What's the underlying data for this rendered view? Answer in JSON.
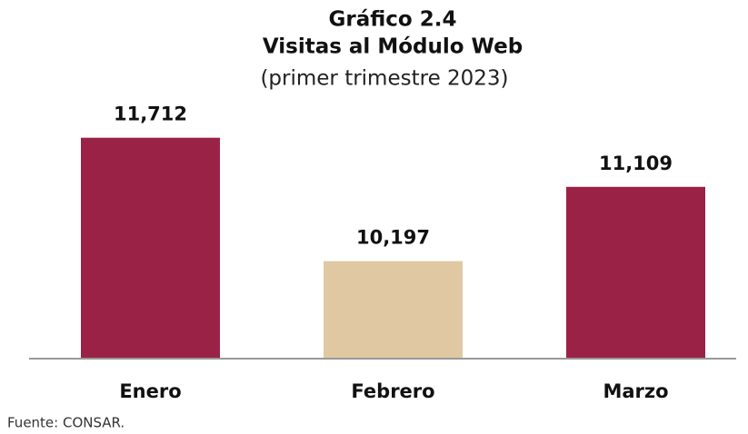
{
  "chart_data": {
    "type": "bar",
    "title": [
      "Gráfico 2.4",
      "Visitas al Módulo Web"
    ],
    "subtitle": "(primer trimestre 2023)",
    "categories": [
      "Enero",
      "Febrero",
      "Marzo"
    ],
    "values": [
      11712,
      10197,
      11109
    ],
    "value_labels": [
      "11,712",
      "10,197",
      "11,109"
    ],
    "colors": [
      "#9b2247",
      "#e0c9a2",
      "#9b2247"
    ],
    "ylim": [
      9000,
      12500
    ],
    "source": "Fuente: CONSAR."
  }
}
